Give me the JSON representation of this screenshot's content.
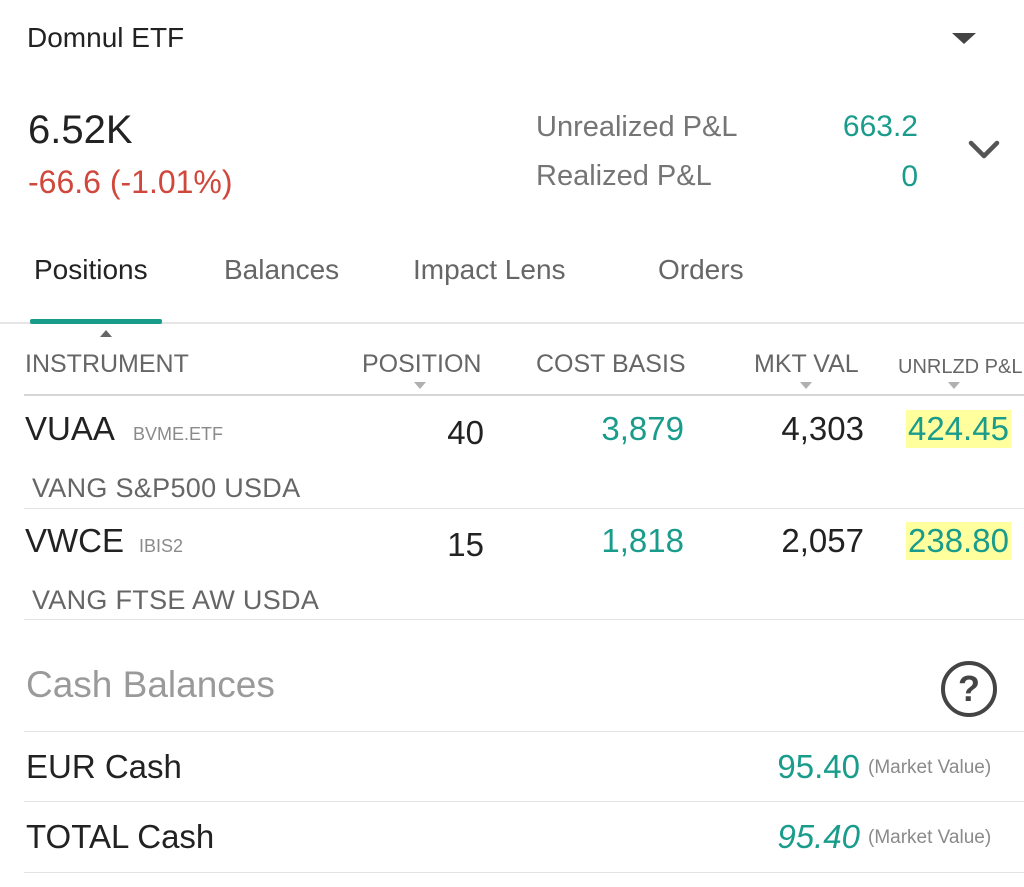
{
  "account": {
    "name": "Domnul ETF"
  },
  "summary": {
    "net_liquidation": "6.52K",
    "daily_change": "-66.6 (-1.01%)",
    "unrealized_label": "Unrealized P&L",
    "unrealized_value": "663.2",
    "realized_label": "Realized P&L",
    "realized_value": "0"
  },
  "tabs": [
    {
      "label": "Positions",
      "active": true
    },
    {
      "label": "Balances",
      "active": false
    },
    {
      "label": "Impact Lens",
      "active": false
    },
    {
      "label": "Orders",
      "active": false
    }
  ],
  "table": {
    "headers": {
      "instrument": "INSTRUMENT",
      "position": "POSITION",
      "cost_basis": "COST BASIS",
      "mkt_val": "MKT VAL",
      "unrlzd_pl": "UNRLZD P&L"
    },
    "rows": [
      {
        "symbol": "VUAA",
        "exchange": "BVME.ETF",
        "description": "VANG S&P500 USDA",
        "position": "40",
        "cost_basis": "3,879",
        "mkt_val": "4,303",
        "unrlzd_pl": "424.45"
      },
      {
        "symbol": "VWCE",
        "exchange": "IBIS2",
        "description": "VANG FTSE AW USDA",
        "position": "15",
        "cost_basis": "1,818",
        "mkt_val": "2,057",
        "unrlzd_pl": "238.80"
      }
    ]
  },
  "cash": {
    "title": "Cash Balances",
    "rows": [
      {
        "label": "EUR Cash",
        "value": "95.40",
        "note": "(Market Value)"
      },
      {
        "label": "TOTAL Cash",
        "value": "95.40",
        "note": "(Market Value)"
      }
    ]
  },
  "icons": {
    "account_dropdown": "caret-down-icon",
    "expand_summary": "chevron-down-icon",
    "help": "help-circle-icon"
  },
  "colors": {
    "accent": "#1a9c8c",
    "negative": "#d0473b",
    "highlight": "#ffff9e"
  }
}
